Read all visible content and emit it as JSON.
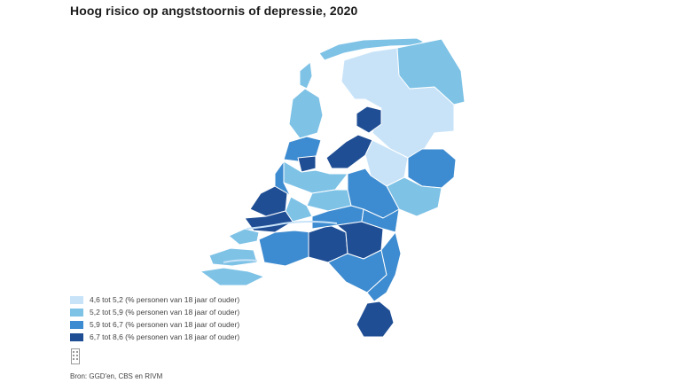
{
  "title": "Hoog risico op angststoornis of depressie, 2020",
  "legend": [
    {
      "label": "4,6 tot 5,2 (% personen van 18 jaar of ouder)",
      "color": "#c8e3f8"
    },
    {
      "label": "5,2 tot 5,9 (% personen van 18 jaar of ouder)",
      "color": "#7ec2e6"
    },
    {
      "label": "5,9 tot 6,7 (% personen van 18 jaar of ouder)",
      "color": "#3d8bd0"
    },
    {
      "label": "6,7 tot 8,6 (% personen van 18 jaar of ouder)",
      "color": "#1f4e94"
    }
  ],
  "source": "Bron: GGD'en, CBS en RIVM",
  "icons": {
    "source": "document-icon"
  }
}
